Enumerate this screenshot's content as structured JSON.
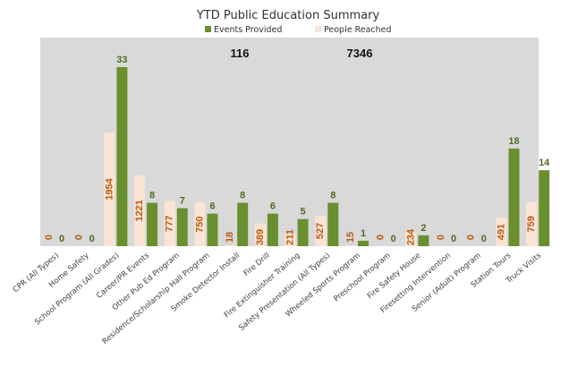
{
  "chart_data": {
    "type": "bar",
    "title": "YTD Public Education Summary",
    "categories": [
      "CPR (All Types)",
      "Home Safety",
      "School Program (All Grades)",
      "Career/PR Events",
      "Other Pub Ed Program",
      "Residence/Scholarship Hall Program",
      "Smoke Detector Install",
      "Fire Drill",
      "Fire Extinguisher Training",
      "Safety Presentation (All Types)",
      "Wheeled Sports Program",
      "Preschool Program",
      "Fire Safety House",
      "Firesetting Intervention",
      "Senior (Adult) Program",
      "Station Tours",
      "Truck Visits"
    ],
    "series": [
      {
        "name": "Events Provided",
        "values": [
          0,
          0,
          33,
          8,
          7,
          6,
          8,
          6,
          5,
          8,
          1,
          0,
          2,
          0,
          0,
          18,
          14
        ]
      },
      {
        "name": "People Reached",
        "values": [
          0,
          0,
          1954,
          1221,
          777,
          750,
          18,
          389,
          211,
          527,
          15,
          0,
          234,
          0,
          0,
          491,
          759
        ]
      }
    ],
    "totals": {
      "events": "116",
      "people": "7346"
    },
    "legend": "top-center",
    "colors": {
      "events": "#6a8f2e",
      "people": "#fbe4d5",
      "plot_bg": "#d9d9d9"
    }
  }
}
